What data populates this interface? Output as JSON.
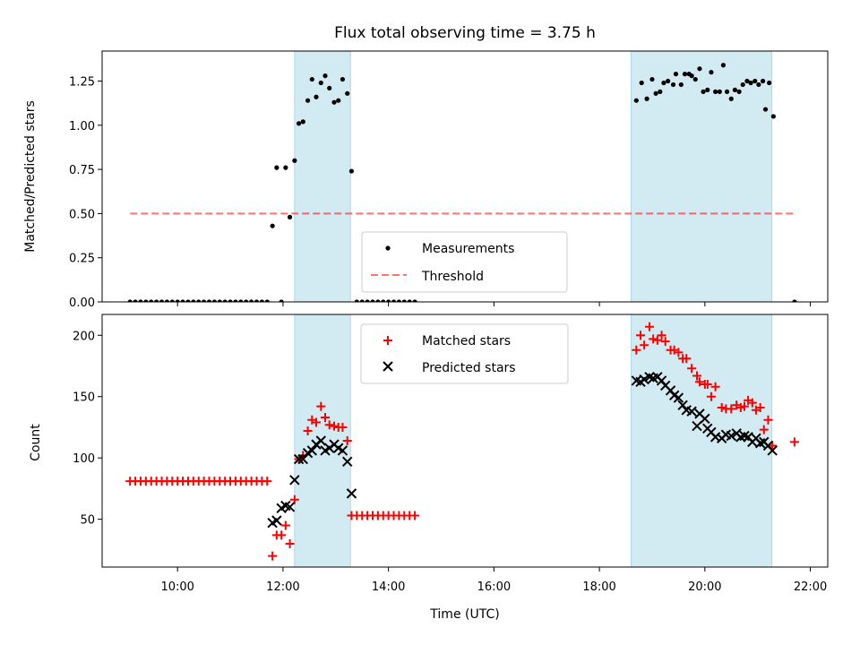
{
  "figure": {
    "title": "Flux total observing time = 3.75 h",
    "xlabel": "Time (UTC)"
  },
  "colors": {
    "shade": "#add8e6",
    "measurements": "#000000",
    "threshold": "#ff0000",
    "matched": "#ff0000",
    "predicted": "#000000"
  },
  "chart_data": [
    {
      "type": "scatter",
      "ylabel": "Matched/Predicted stars",
      "xlim": [
        8.57,
        22.33
      ],
      "ylim": [
        0,
        1.42
      ],
      "x_tick_labels": [],
      "y_ticks": [
        0,
        0.25,
        0.5,
        0.75,
        1.0,
        1.25
      ],
      "y_tick_labels": [
        "0.00",
        "0.25",
        "0.50",
        "0.75",
        "1.00",
        "1.25"
      ],
      "shaded_intervals": [
        [
          12.22,
          13.28
        ],
        [
          18.6,
          21.27
        ]
      ],
      "legend": {
        "placement": "lower center",
        "entries": [
          "Measurements",
          "Threshold"
        ]
      },
      "threshold": {
        "name": "Threshold",
        "x": [
          9.1,
          21.7
        ],
        "y": [
          0.5,
          0.5
        ],
        "style": "dashed"
      },
      "series": [
        {
          "name": "Measurements",
          "marker": "dot",
          "points": [
            [
              9.1,
              0
            ],
            [
              9.2,
              0
            ],
            [
              9.3,
              0
            ],
            [
              9.4,
              0
            ],
            [
              9.5,
              0
            ],
            [
              9.6,
              0
            ],
            [
              9.7,
              0
            ],
            [
              9.8,
              0
            ],
            [
              9.9,
              0
            ],
            [
              10.0,
              0
            ],
            [
              10.1,
              0
            ],
            [
              10.2,
              0
            ],
            [
              10.3,
              0
            ],
            [
              10.4,
              0
            ],
            [
              10.5,
              0
            ],
            [
              10.6,
              0
            ],
            [
              10.7,
              0
            ],
            [
              10.8,
              0
            ],
            [
              10.9,
              0
            ],
            [
              11.0,
              0
            ],
            [
              11.1,
              0
            ],
            [
              11.2,
              0
            ],
            [
              11.3,
              0
            ],
            [
              11.4,
              0
            ],
            [
              11.5,
              0
            ],
            [
              11.6,
              0
            ],
            [
              11.7,
              0
            ],
            [
              11.8,
              0.43
            ],
            [
              11.88,
              0.76
            ],
            [
              11.97,
              0
            ],
            [
              12.05,
              0.76
            ],
            [
              12.13,
              0.48
            ],
            [
              12.22,
              0.8
            ],
            [
              12.3,
              1.01
            ],
            [
              12.38,
              1.02
            ],
            [
              12.47,
              1.14
            ],
            [
              12.55,
              1.26
            ],
            [
              12.63,
              1.16
            ],
            [
              12.72,
              1.24
            ],
            [
              12.8,
              1.28
            ],
            [
              12.88,
              1.21
            ],
            [
              12.97,
              1.13
            ],
            [
              13.05,
              1.14
            ],
            [
              13.13,
              1.26
            ],
            [
              13.22,
              1.18
            ],
            [
              13.3,
              0.74
            ],
            [
              13.4,
              0
            ],
            [
              13.5,
              0
            ],
            [
              13.6,
              0
            ],
            [
              13.7,
              0
            ],
            [
              13.8,
              0
            ],
            [
              13.9,
              0
            ],
            [
              14.0,
              0
            ],
            [
              14.1,
              0
            ],
            [
              14.2,
              0
            ],
            [
              14.3,
              0
            ],
            [
              14.4,
              0
            ],
            [
              14.5,
              0
            ],
            [
              18.7,
              1.14
            ],
            [
              18.8,
              1.24
            ],
            [
              18.9,
              1.15
            ],
            [
              19.0,
              1.26
            ],
            [
              19.07,
              1.18
            ],
            [
              19.15,
              1.19
            ],
            [
              19.22,
              1.24
            ],
            [
              19.3,
              1.25
            ],
            [
              19.4,
              1.23
            ],
            [
              19.45,
              1.29
            ],
            [
              19.55,
              1.23
            ],
            [
              19.62,
              1.29
            ],
            [
              19.7,
              1.29
            ],
            [
              19.75,
              1.28
            ],
            [
              19.82,
              1.26
            ],
            [
              19.9,
              1.32
            ],
            [
              19.97,
              1.19
            ],
            [
              20.05,
              1.2
            ],
            [
              20.12,
              1.3
            ],
            [
              20.2,
              1.19
            ],
            [
              20.28,
              1.19
            ],
            [
              20.35,
              1.34
            ],
            [
              20.42,
              1.19
            ],
            [
              20.5,
              1.15
            ],
            [
              20.57,
              1.2
            ],
            [
              20.65,
              1.19
            ],
            [
              20.72,
              1.23
            ],
            [
              20.8,
              1.25
            ],
            [
              20.87,
              1.24
            ],
            [
              20.95,
              1.25
            ],
            [
              21.02,
              1.23
            ],
            [
              21.1,
              1.25
            ],
            [
              21.15,
              1.09
            ],
            [
              21.22,
              1.24
            ],
            [
              21.3,
              1.05
            ],
            [
              21.7,
              0
            ]
          ]
        }
      ]
    },
    {
      "type": "scatter",
      "ylabel": "Count",
      "xlim": [
        8.57,
        22.33
      ],
      "ylim": [
        11,
        217
      ],
      "x_ticks": [
        10,
        12,
        14,
        16,
        18,
        20,
        22
      ],
      "x_tick_labels": [
        "10:00",
        "12:00",
        "14:00",
        "16:00",
        "18:00",
        "20:00",
        "22:00"
      ],
      "y_ticks": [
        50,
        100,
        150,
        200
      ],
      "y_tick_labels": [
        "50",
        "100",
        "150",
        "200"
      ],
      "shaded_intervals": [
        [
          12.22,
          13.28
        ],
        [
          18.6,
          21.27
        ]
      ],
      "legend": {
        "placement": "top center",
        "entries": [
          "Matched stars",
          "Predicted stars"
        ]
      },
      "series": [
        {
          "name": "Matched stars",
          "marker": "plus",
          "points": [
            [
              9.1,
              81
            ],
            [
              9.2,
              81
            ],
            [
              9.3,
              81
            ],
            [
              9.4,
              81
            ],
            [
              9.5,
              81
            ],
            [
              9.6,
              81
            ],
            [
              9.7,
              81
            ],
            [
              9.8,
              81
            ],
            [
              9.9,
              81
            ],
            [
              10.0,
              81
            ],
            [
              10.1,
              81
            ],
            [
              10.2,
              81
            ],
            [
              10.3,
              81
            ],
            [
              10.4,
              81
            ],
            [
              10.5,
              81
            ],
            [
              10.6,
              81
            ],
            [
              10.7,
              81
            ],
            [
              10.8,
              81
            ],
            [
              10.9,
              81
            ],
            [
              11.0,
              81
            ],
            [
              11.1,
              81
            ],
            [
              11.2,
              81
            ],
            [
              11.3,
              81
            ],
            [
              11.4,
              81
            ],
            [
              11.5,
              81
            ],
            [
              11.6,
              81
            ],
            [
              11.7,
              81
            ],
            [
              11.8,
              20
            ],
            [
              11.88,
              37
            ],
            [
              11.97,
              37
            ],
            [
              12.05,
              45
            ],
            [
              12.13,
              30
            ],
            [
              12.22,
              66
            ],
            [
              12.3,
              99
            ],
            [
              12.38,
              102
            ],
            [
              12.47,
              122
            ],
            [
              12.55,
              131
            ],
            [
              12.63,
              129
            ],
            [
              12.72,
              142
            ],
            [
              12.8,
              133
            ],
            [
              12.88,
              127
            ],
            [
              12.97,
              126
            ],
            [
              13.05,
              125
            ],
            [
              13.13,
              125
            ],
            [
              13.22,
              114
            ],
            [
              13.3,
              53
            ],
            [
              13.4,
              53
            ],
            [
              13.5,
              53
            ],
            [
              13.6,
              53
            ],
            [
              13.7,
              53
            ],
            [
              13.8,
              53
            ],
            [
              13.9,
              53
            ],
            [
              14.0,
              53
            ],
            [
              14.1,
              53
            ],
            [
              14.2,
              53
            ],
            [
              14.3,
              53
            ],
            [
              14.4,
              53
            ],
            [
              14.5,
              53
            ],
            [
              18.7,
              188
            ],
            [
              18.78,
              200
            ],
            [
              18.85,
              192
            ],
            [
              18.95,
              207
            ],
            [
              19.02,
              197
            ],
            [
              19.1,
              196
            ],
            [
              19.18,
              200
            ],
            [
              19.25,
              195
            ],
            [
              19.35,
              188
            ],
            [
              19.42,
              188
            ],
            [
              19.5,
              186
            ],
            [
              19.58,
              181
            ],
            [
              19.65,
              181
            ],
            [
              19.75,
              173
            ],
            [
              19.85,
              167
            ],
            [
              19.9,
              162
            ],
            [
              20.0,
              160
            ],
            [
              20.05,
              160
            ],
            [
              20.12,
              150
            ],
            [
              20.2,
              158
            ],
            [
              20.32,
              141
            ],
            [
              20.4,
              140
            ],
            [
              20.5,
              140
            ],
            [
              20.6,
              143
            ],
            [
              20.68,
              141
            ],
            [
              20.75,
              142
            ],
            [
              20.82,
              147
            ],
            [
              20.9,
              145
            ],
            [
              20.97,
              139
            ],
            [
              21.05,
              141
            ],
            [
              21.12,
              123
            ],
            [
              21.2,
              131
            ],
            [
              21.28,
              110
            ],
            [
              21.7,
              113
            ]
          ]
        },
        {
          "name": "Predicted stars",
          "marker": "x",
          "points": [
            [
              11.8,
              47
            ],
            [
              11.88,
              49
            ],
            [
              11.97,
              59
            ],
            [
              12.05,
              61
            ],
            [
              12.13,
              60
            ],
            [
              12.22,
              82
            ],
            [
              12.3,
              99
            ],
            [
              12.38,
              99
            ],
            [
              12.47,
              104
            ],
            [
              12.55,
              106
            ],
            [
              12.63,
              111
            ],
            [
              12.72,
              114
            ],
            [
              12.8,
              106
            ],
            [
              12.88,
              108
            ],
            [
              12.97,
              111
            ],
            [
              13.05,
              108
            ],
            [
              13.13,
              106
            ],
            [
              13.22,
              97
            ],
            [
              13.3,
              71
            ],
            [
              18.7,
              163
            ],
            [
              18.78,
              162
            ],
            [
              18.85,
              164
            ],
            [
              18.95,
              166
            ],
            [
              19.02,
              165
            ],
            [
              19.1,
              166
            ],
            [
              19.18,
              163
            ],
            [
              19.25,
              159
            ],
            [
              19.35,
              155
            ],
            [
              19.42,
              151
            ],
            [
              19.5,
              149
            ],
            [
              19.58,
              143
            ],
            [
              19.65,
              139
            ],
            [
              19.75,
              138
            ],
            [
              19.85,
              126
            ],
            [
              19.9,
              136
            ],
            [
              20.0,
              132
            ],
            [
              20.05,
              124
            ],
            [
              20.12,
              121
            ],
            [
              20.2,
              117
            ],
            [
              20.32,
              116
            ],
            [
              20.4,
              119
            ],
            [
              20.5,
              118
            ],
            [
              20.6,
              120
            ],
            [
              20.68,
              117
            ],
            [
              20.75,
              118
            ],
            [
              20.82,
              117
            ],
            [
              20.9,
              113
            ],
            [
              20.97,
              116
            ],
            [
              21.05,
              112
            ],
            [
              21.12,
              113
            ],
            [
              21.2,
              110
            ],
            [
              21.28,
              106
            ]
          ]
        }
      ]
    }
  ]
}
